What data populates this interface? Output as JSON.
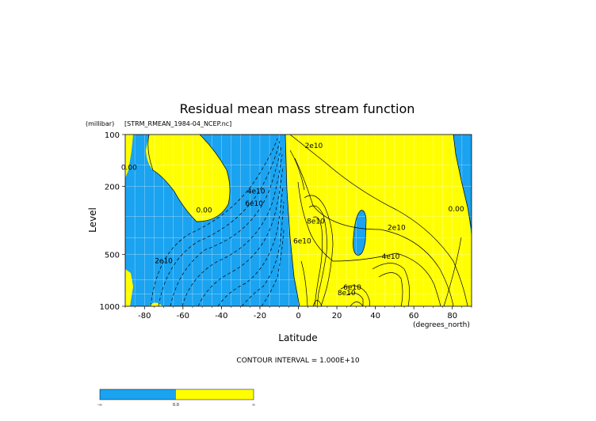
{
  "chart_data": {
    "type": "heatmap",
    "title": "Residual mean mass stream function",
    "subtitle": "[STRM_RMEAN_1984-04_NCEP.nc]",
    "xlabel": "Latitude",
    "xunits": "(degrees_north)",
    "ylabel": "Level",
    "yunits": "(millibar)",
    "xlim": [
      -90,
      90
    ],
    "ylim": [
      1000,
      100
    ],
    "yscale": "log",
    "x_ticks": [
      -80,
      -60,
      -40,
      -20,
      0,
      20,
      40,
      60,
      80
    ],
    "y_ticks": [
      100,
      200,
      500,
      1000
    ],
    "grid": true,
    "contour_interval_text": "CONTOUR INTERVAL = 1.000E+10",
    "contour_interval": 10000000000.0,
    "fill_negative_color": "#1aa3f0",
    "fill_positive_color": "#ffff00",
    "contour_labels": [
      {
        "text": "0.00",
        "lat": -88,
        "p": 160
      },
      {
        "text": "0.00",
        "lat": -49,
        "p": 285
      },
      {
        "text": "0.00",
        "lat": 82,
        "p": 280
      },
      {
        "text": "2e10",
        "lat": 8,
        "p": 120
      },
      {
        "text": "2e10",
        "lat": 51,
        "p": 360
      },
      {
        "text": "2e10",
        "lat": -70,
        "p": 560
      },
      {
        "text": "4e10",
        "lat": 48,
        "p": 530
      },
      {
        "text": "4e10",
        "lat": -22,
        "p": 220
      },
      {
        "text": "6e10",
        "lat": -23,
        "p": 260
      },
      {
        "text": "6e10",
        "lat": 2,
        "p": 430
      },
      {
        "text": "6e10",
        "lat": 28,
        "p": 800
      },
      {
        "text": "8e10",
        "lat": 25,
        "p": 860
      },
      {
        "text": "8e10",
        "lat": 9,
        "p": 330
      }
    ],
    "colorbar": {
      "labels": [
        "-∞",
        "0.0",
        "∞"
      ],
      "colors": [
        "#1aa3f0",
        "#ffff00"
      ]
    }
  }
}
